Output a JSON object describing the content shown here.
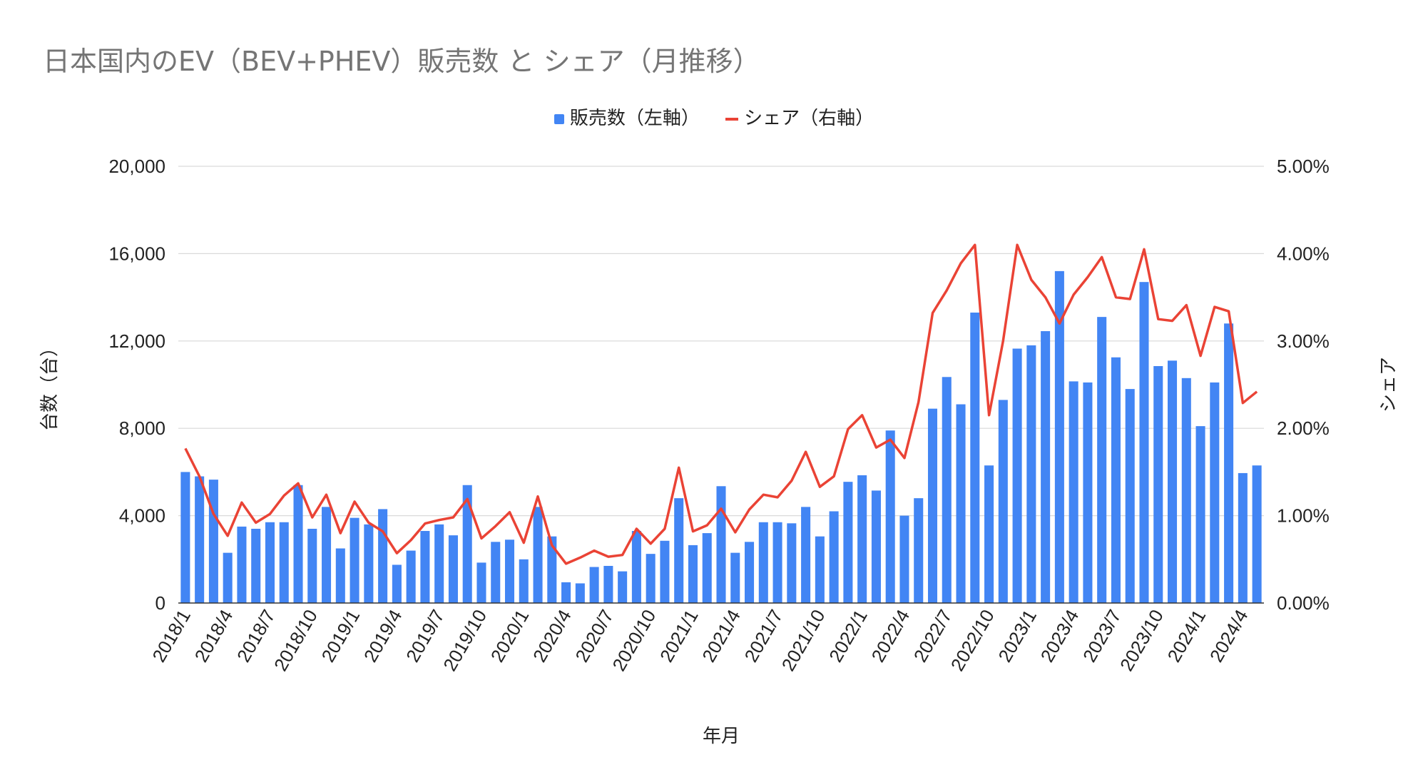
{
  "chart_data": {
    "type": "bar",
    "title": "日本国内のEV（BEV+PHEV）販売数 と シェア（月推移）",
    "xlabel": "年月",
    "ylabel": "台数（台）",
    "y2label": "シェア",
    "ylim": [
      0,
      20000
    ],
    "y2lim": [
      0,
      5
    ],
    "yticks": [
      "0",
      "4,000",
      "8,000",
      "12,000",
      "16,000",
      "20,000"
    ],
    "y2ticks": [
      "0.00%",
      "1.00%",
      "2.00%",
      "3.00%",
      "4.00%",
      "5.00%"
    ],
    "grid": true,
    "legend_position": "top-center",
    "categories": [
      "2018/1",
      "2018/2",
      "2018/3",
      "2018/4",
      "2018/5",
      "2018/6",
      "2018/7",
      "2018/8",
      "2018/9",
      "2018/10",
      "2018/11",
      "2018/12",
      "2019/1",
      "2019/2",
      "2019/3",
      "2019/4",
      "2019/5",
      "2019/6",
      "2019/7",
      "2019/8",
      "2019/9",
      "2019/10",
      "2019/11",
      "2019/12",
      "2020/1",
      "2020/2",
      "2020/3",
      "2020/4",
      "2020/5",
      "2020/6",
      "2020/7",
      "2020/8",
      "2020/9",
      "2020/10",
      "2020/11",
      "2020/12",
      "2021/1",
      "2021/2",
      "2021/3",
      "2021/4",
      "2021/5",
      "2021/6",
      "2021/7",
      "2021/8",
      "2021/9",
      "2021/10",
      "2021/11",
      "2021/12",
      "2022/1",
      "2022/2",
      "2022/3",
      "2022/4",
      "2022/5",
      "2022/6",
      "2022/7",
      "2022/8",
      "2022/9",
      "2022/10",
      "2022/11",
      "2022/12",
      "2023/1",
      "2023/2",
      "2023/3",
      "2023/4",
      "2023/5",
      "2023/6",
      "2023/7",
      "2023/8",
      "2023/9",
      "2023/10",
      "2023/11",
      "2023/12",
      "2024/1",
      "2024/2",
      "2024/3",
      "2024/4",
      "2024/5"
    ],
    "shown_xticks": [
      "2018/1",
      "2018/4",
      "2018/7",
      "2018/10",
      "2019/1",
      "2019/4",
      "2019/7",
      "2019/10",
      "2020/1",
      "2020/4",
      "2020/7",
      "2020/10",
      "2021/1",
      "2021/4",
      "2021/7",
      "2021/10",
      "2022/1",
      "2022/4",
      "2022/7",
      "2022/10",
      "2023/1",
      "2023/4",
      "2023/7",
      "2023/10",
      "2024/1",
      "2024/4"
    ],
    "series": [
      {
        "name": "販売数（左軸）",
        "type": "bar",
        "axis": "left",
        "color": "#4285f4",
        "values": [
          6000,
          5800,
          5650,
          2300,
          3500,
          3400,
          3700,
          3700,
          5400,
          3400,
          4400,
          2500,
          3900,
          3600,
          4300,
          1750,
          2400,
          3300,
          3600,
          3100,
          5400,
          1850,
          2800,
          2900,
          2000,
          4400,
          3050,
          950,
          900,
          1650,
          1700,
          1450,
          3300,
          2250,
          2850,
          4800,
          2650,
          3200,
          5350,
          2300,
          2800,
          3700,
          3700,
          3650,
          4400,
          3050,
          4200,
          5550,
          5850,
          5150,
          7900,
          4000,
          4800,
          8900,
          10350,
          9100,
          13300,
          6300,
          9300,
          11650,
          11800,
          12450,
          15200,
          10150,
          10100,
          13100,
          11250,
          9800,
          14700,
          10850,
          11100,
          10300,
          8100,
          10100,
          12800,
          5950,
          6300
        ]
      },
      {
        "name": "シェア（右軸）",
        "type": "line",
        "axis": "right",
        "color": "#ea4335",
        "values": [
          1.77,
          1.45,
          1.02,
          0.77,
          1.15,
          0.92,
          1.02,
          1.23,
          1.37,
          0.98,
          1.24,
          0.8,
          1.16,
          0.92,
          0.82,
          0.57,
          0.72,
          0.91,
          0.95,
          0.98,
          1.19,
          0.74,
          0.88,
          1.04,
          0.69,
          1.22,
          0.66,
          0.45,
          0.52,
          0.6,
          0.53,
          0.55,
          0.85,
          0.68,
          0.85,
          1.55,
          0.82,
          0.89,
          1.08,
          0.81,
          1.07,
          1.24,
          1.21,
          1.4,
          1.73,
          1.33,
          1.45,
          1.99,
          2.15,
          1.78,
          1.87,
          1.66,
          2.3,
          3.32,
          3.58,
          3.89,
          4.1,
          2.15,
          3.0,
          4.1,
          3.7,
          3.5,
          3.2,
          3.53,
          3.73,
          3.96,
          3.5,
          3.48,
          4.05,
          3.25,
          3.23,
          3.41,
          2.83,
          3.39,
          3.34,
          2.29,
          2.42
        ]
      }
    ]
  }
}
